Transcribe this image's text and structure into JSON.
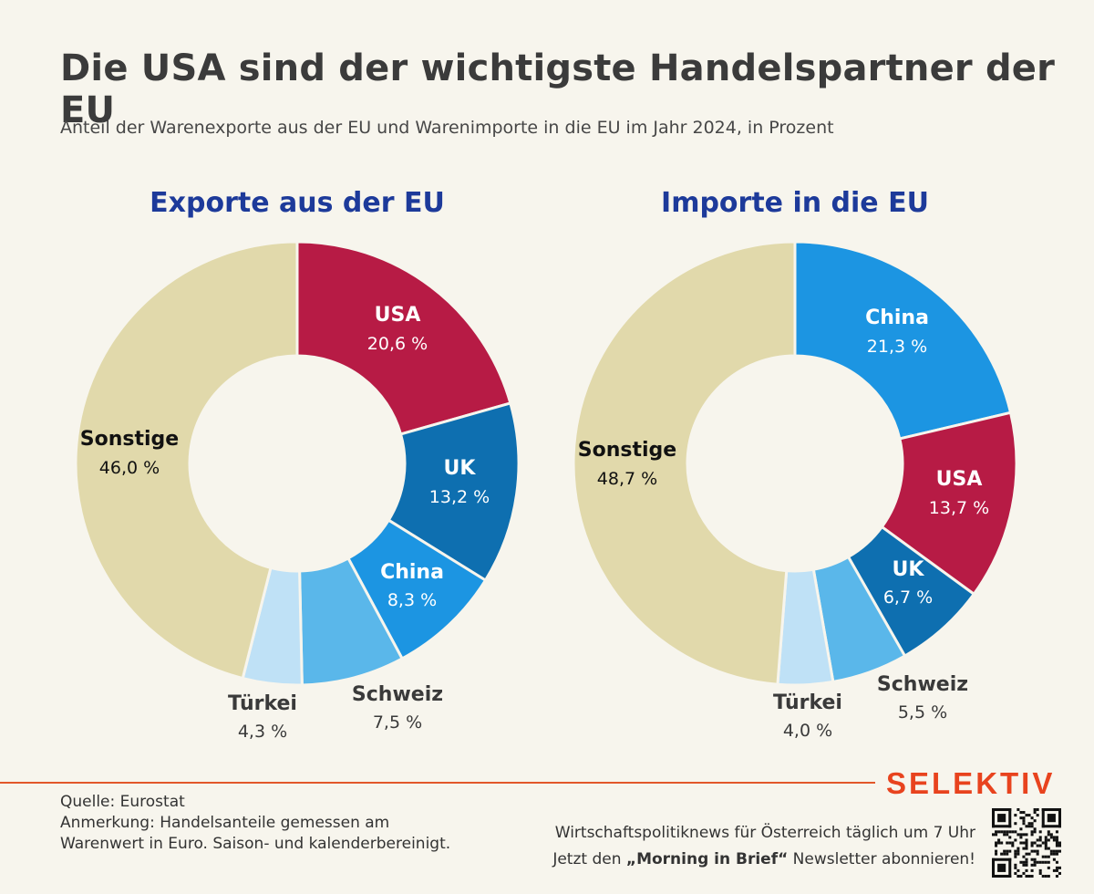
{
  "header": {
    "title": "Die USA sind der wichtigste Handelspartner der EU",
    "subtitle": "Anteil der Warenexporte aus der EU und Warenimporte in die EU im Jahr 2024, in Prozent"
  },
  "chart_data": [
    {
      "type": "pie",
      "title": "Exporte aus der EU",
      "slices": [
        {
          "label": "USA",
          "value": 20.6,
          "value_label": "20,6 %",
          "color": "#b71b45"
        },
        {
          "label": "UK",
          "value": 13.2,
          "value_label": "13,2 %",
          "color": "#0e6fb0"
        },
        {
          "label": "China",
          "value": 8.3,
          "value_label": "8,3 %",
          "color": "#1c95e2"
        },
        {
          "label": "Schweiz",
          "value": 7.5,
          "value_label": "7,5 %",
          "color": "#5ab7ea"
        },
        {
          "label": "Türkei",
          "value": 4.3,
          "value_label": "4,3 %",
          "color": "#bfe1f6"
        },
        {
          "label": "Sonstige",
          "value": 46.0,
          "value_label": "46,0 %",
          "color": "#e1d9ab"
        }
      ]
    },
    {
      "type": "pie",
      "title": "Importe in die EU",
      "slices": [
        {
          "label": "China",
          "value": 21.3,
          "value_label": "21,3 %",
          "color": "#1c95e2"
        },
        {
          "label": "USA",
          "value": 13.7,
          "value_label": "13,7 %",
          "color": "#b71b45"
        },
        {
          "label": "UK",
          "value": 6.7,
          "value_label": "6,7 %",
          "color": "#0e6fb0"
        },
        {
          "label": "Schweiz",
          "value": 5.5,
          "value_label": "5,5 %",
          "color": "#5ab7ea"
        },
        {
          "label": "Türkei",
          "value": 4.0,
          "value_label": "4,0 %",
          "color": "#bfe1f6"
        },
        {
          "label": "Sonstige",
          "value": 48.7,
          "value_label": "48,7 %",
          "color": "#e1d9ab"
        }
      ]
    }
  ],
  "footer": {
    "source": "Quelle: Eurostat",
    "note_line1": "Anmerkung: Handelsanteile gemessen am",
    "note_line2": "Warenwert in Euro. Saison- und kalenderbereinigt.",
    "brand": "SELEKTIV",
    "promo_line1": "Wirtschaftspolitiknews für Österreich täglich um 7 Uhr",
    "promo_line2_pre": "Jetzt den ",
    "promo_line2_bold": "„Morning in Brief“",
    "promo_line2_post": " Newsletter abonnieren!",
    "qr_icon": "qr-code-icon"
  }
}
